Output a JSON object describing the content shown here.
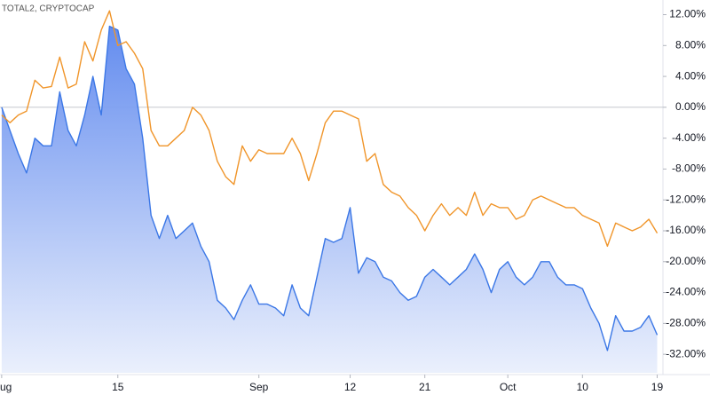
{
  "chart_data": {
    "type": "line",
    "subtitle": "TOTAL2, CRYPTOCAP",
    "x": [
      0,
      1,
      2,
      3,
      4,
      5,
      6,
      7,
      8,
      9,
      10,
      11,
      12,
      13,
      14,
      15,
      16,
      17,
      18,
      19,
      20,
      21,
      22,
      23,
      24,
      25,
      26,
      27,
      28,
      29,
      30,
      31,
      32,
      33,
      34,
      35,
      36,
      37,
      38,
      39,
      40,
      41,
      42,
      43,
      44,
      45,
      46,
      47,
      48,
      49,
      50,
      51,
      52,
      53,
      54,
      55,
      56,
      57,
      58,
      59,
      60,
      61,
      62,
      63,
      64,
      65,
      66,
      67,
      68,
      69,
      70,
      71,
      72,
      73,
      74,
      75,
      76,
      77,
      78,
      79
    ],
    "series": [
      {
        "color": "#3b77e6",
        "fill": true,
        "values": [
          0,
          -3,
          -6,
          -8.5,
          -4,
          -5,
          -5,
          2,
          -3,
          -5,
          -1,
          4,
          -1,
          10.5,
          10,
          5,
          3,
          -4,
          -14,
          -17,
          -14,
          -17,
          -16,
          -15,
          -18,
          -20,
          -25,
          -26,
          -27.5,
          -25,
          -23,
          -25.5,
          -25.5,
          -26,
          -27,
          -23,
          -26,
          -27,
          -22,
          -17,
          -17.5,
          -17,
          -13,
          -21.5,
          -19.5,
          -20,
          -22,
          -22.5,
          -24,
          -25,
          -24.5,
          -22,
          -21,
          -22,
          -23,
          -22,
          -21,
          -19,
          -21,
          -24,
          -21,
          -20,
          -22,
          -23,
          -22,
          -20,
          -20,
          -22,
          -23,
          -23,
          -23.5,
          -26,
          -28,
          -31.5,
          -27,
          -29,
          -29,
          -28.5,
          -27,
          -29.5
        ]
      },
      {
        "color": "#f0952a",
        "fill": false,
        "values": [
          -1,
          -2,
          -1,
          -0.5,
          3.5,
          2.5,
          2.7,
          6.5,
          2.5,
          3,
          8.5,
          6,
          10,
          12.5,
          8,
          8.5,
          7,
          5,
          -3,
          -5,
          -5,
          -4,
          -3,
          0,
          -1,
          -3,
          -7,
          -9,
          -10,
          -5,
          -7,
          -5.5,
          -6,
          -6,
          -6,
          -4,
          -6,
          -9.5,
          -6,
          -2,
          -0.5,
          -0.5,
          -1,
          -1.5,
          -7,
          -6,
          -10,
          -11,
          -11.5,
          -13,
          -14,
          -16,
          -14,
          -12.5,
          -14,
          -13,
          -14,
          -11,
          -14,
          -12.5,
          -13,
          -13,
          -14.5,
          -14,
          -12,
          -11.5,
          -12,
          -12.5,
          -13,
          -13,
          -14,
          -14.5,
          -15,
          -18,
          -15,
          -15.5,
          -16,
          -15.5,
          -14.5,
          -16.3
        ]
      }
    ],
    "xlim": [
      -0.2,
      79.7
    ],
    "xticks": [
      {
        "value": 0,
        "label": "ug"
      },
      {
        "value": 14,
        "label": "15"
      },
      {
        "value": 31,
        "label": "Sep"
      },
      {
        "value": 42,
        "label": "12"
      },
      {
        "value": 51,
        "label": "21"
      },
      {
        "value": 61,
        "label": "Oct"
      },
      {
        "value": 70,
        "label": "10"
      },
      {
        "value": 79,
        "label": "19"
      }
    ],
    "ylim": [
      -34.4,
      13.9
    ],
    "yticks": [
      {
        "value": 12,
        "label": "12.00%"
      },
      {
        "value": 8,
        "label": "8.00%"
      },
      {
        "value": 4,
        "label": "4.00%"
      },
      {
        "value": 0,
        "label": "0.00%"
      },
      {
        "value": -4,
        "label": "-4.00%"
      },
      {
        "value": -8,
        "label": "-8.00%"
      },
      {
        "value": -12,
        "label": "-12.00%"
      },
      {
        "value": -16,
        "label": "-16.00%"
      },
      {
        "value": -20,
        "label": "-20.00%"
      },
      {
        "value": -24,
        "label": "-24.00%"
      },
      {
        "value": -28,
        "label": "-28.00%"
      },
      {
        "value": -32,
        "label": "-32.00%"
      }
    ],
    "grid": false
  }
}
